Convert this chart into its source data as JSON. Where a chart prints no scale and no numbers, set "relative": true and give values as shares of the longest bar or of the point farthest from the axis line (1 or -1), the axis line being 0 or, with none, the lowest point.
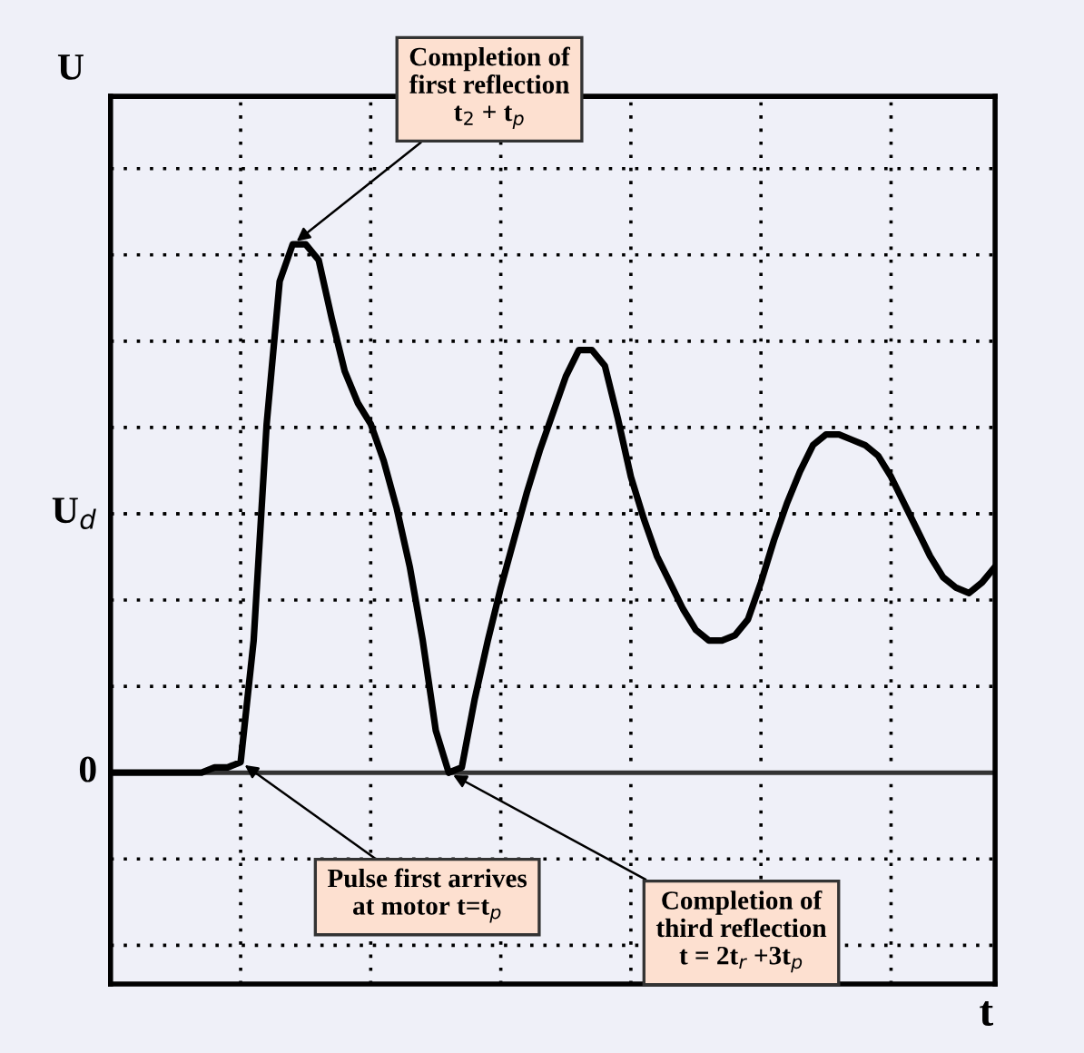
{
  "chart_data": {
    "type": "line",
    "ylabel": "U",
    "relative": true,
    "categories": [
      null,
      null,
      null,
      null,
      null,
      null,
      null,
      null,
      null,
      null,
      null,
      null,
      null,
      null,
      null,
      null,
      null,
      null,
      null,
      null,
      null,
      null,
      null,
      null,
      null,
      null,
      null,
      null,
      null,
      null,
      null,
      null,
      null,
      null,
      null,
      null,
      null,
      null,
      null,
      null,
      null,
      null,
      null,
      null,
      null,
      null,
      null,
      null,
      null,
      null,
      null,
      null,
      null,
      null,
      null,
      null,
      null,
      null,
      null,
      null,
      null,
      null,
      null,
      null,
      null,
      null,
      null,
      null,
      null
    ],
    "series": [
      {
        "color": "#000000",
        "values": [
          0,
          0,
          0,
          0,
          0,
          0,
          0,
          0,
          0.01,
          0.01,
          0.02,
          0.25,
          0.66,
          0.93,
          1.0,
          1.0,
          0.97,
          0.86,
          0.76,
          0.7,
          0.66,
          0.59,
          0.5,
          0.39,
          0.25,
          0.08,
          0.0,
          0.01,
          0.14,
          0.25,
          0.35,
          0.44,
          0.53,
          0.61,
          0.68,
          0.75,
          0.8,
          0.8,
          0.77,
          0.67,
          0.56,
          0.48,
          0.41,
          0.36,
          0.31,
          0.27,
          0.25,
          0.25,
          0.26,
          0.29,
          0.36,
          0.44,
          0.51,
          0.57,
          0.62,
          0.64,
          0.64,
          0.63,
          0.62,
          0.6,
          0.56,
          0.51,
          0.46,
          0.41,
          0.37,
          0.35,
          0.34,
          0.36,
          0.39
        ]
      }
    ],
    "grid": true,
    "marker": "none",
    "line_style": "solid",
    "legend": false,
    "ref_lines": [
      {
        "axis": "y",
        "value": 0,
        "label": "0",
        "color": "#333333",
        "line_style": "solid"
      },
      {
        "axis": "y",
        "value": 0.49,
        "label": "U$_{d}$",
        "color": "#000000",
        "line_style": "dotted"
      }
    ],
    "annotations": [
      "Completion of\nfirst reflection\nt$_{2}$ + t$_{p}$",
      "Pulse first arrives\nat motor t=t$_{p}$",
      "Completion of\nthird reflection\nt = 2t$_{r}$ +3t$_{p}$",
      "t"
    ]
  }
}
